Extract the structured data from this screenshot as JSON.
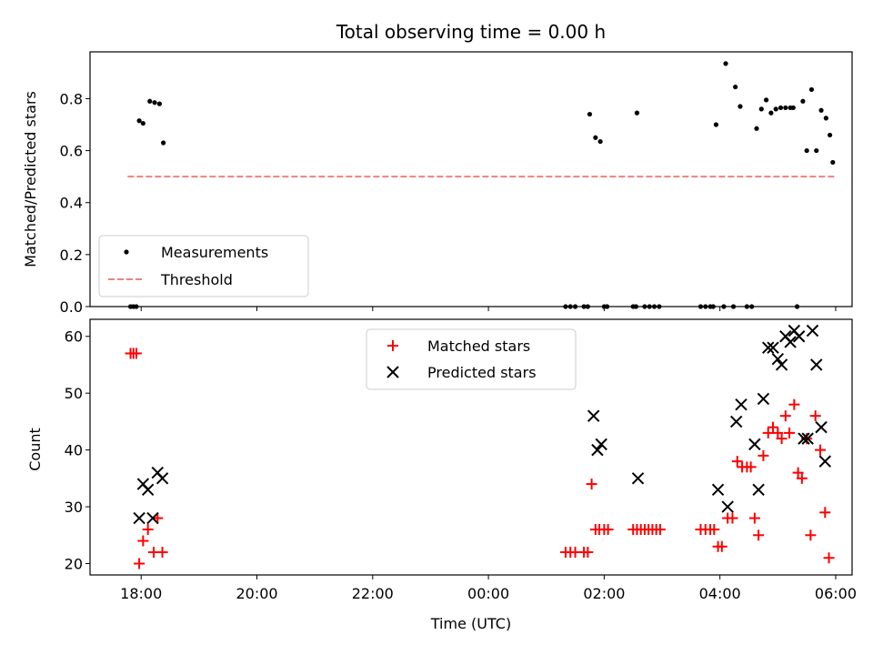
{
  "chart_data": [
    {
      "type": "scatter",
      "title": "Total observing time = 0.00 h",
      "xlabel": "",
      "ylabel": "Matched/Predicted stars",
      "xlim": [
        "17:07",
        "06:17"
      ],
      "ylim": [
        0,
        0.98
      ],
      "yticks": [
        "0.0",
        "0.2",
        "0.4",
        "0.6",
        "0.8"
      ],
      "xticks": [
        "18:00",
        "20:00",
        "22:00",
        "00:00",
        "02:00",
        "04:00",
        "06:00"
      ],
      "legend_position": "lower-left",
      "series": [
        {
          "name": "Measurements",
          "marker": "dot",
          "color": "#000000",
          "points": [
            [
              "17:49",
              0.0
            ],
            [
              "17:52",
              0.0
            ],
            [
              "17:55",
              0.0
            ],
            [
              "17:58",
              0.715
            ],
            [
              "18:02",
              0.705
            ],
            [
              "18:09",
              0.79
            ],
            [
              "18:14",
              0.785
            ],
            [
              "18:19",
              0.78
            ],
            [
              "18:23",
              0.63
            ],
            [
              "01:20",
              0.0
            ],
            [
              "01:25",
              0.0
            ],
            [
              "01:30",
              0.0
            ],
            [
              "01:39",
              0.0
            ],
            [
              "01:43",
              0.0
            ],
            [
              "01:45",
              0.74
            ],
            [
              "01:51",
              0.65
            ],
            [
              "01:56",
              0.635
            ],
            [
              "02:00",
              0.0
            ],
            [
              "02:03",
              0.0
            ],
            [
              "02:30",
              0.0
            ],
            [
              "02:33",
              0.0
            ],
            [
              "02:34",
              0.745
            ],
            [
              "02:42",
              0.0
            ],
            [
              "02:47",
              0.0
            ],
            [
              "02:52",
              0.0
            ],
            [
              "02:57",
              0.0
            ],
            [
              "03:40",
              0.0
            ],
            [
              "03:45",
              0.0
            ],
            [
              "03:50",
              0.0
            ],
            [
              "03:53",
              0.0
            ],
            [
              "03:56",
              0.7
            ],
            [
              "04:04",
              0.0
            ],
            [
              "04:06",
              0.935
            ],
            [
              "04:14",
              0.0
            ],
            [
              "04:16",
              0.845
            ],
            [
              "04:21",
              0.77
            ],
            [
              "04:28",
              0.0
            ],
            [
              "04:33",
              0.0
            ],
            [
              "04:38",
              0.685
            ],
            [
              "04:43",
              0.76
            ],
            [
              "04:48",
              0.795
            ],
            [
              "04:53",
              0.745
            ],
            [
              "04:58",
              0.76
            ],
            [
              "05:03",
              0.765
            ],
            [
              "05:08",
              0.765
            ],
            [
              "05:13",
              0.765
            ],
            [
              "05:16",
              0.765
            ],
            [
              "05:20",
              0.0
            ],
            [
              "05:26",
              0.79
            ],
            [
              "05:30",
              0.6
            ],
            [
              "05:35",
              0.835
            ],
            [
              "05:40",
              0.6
            ],
            [
              "05:45",
              0.755
            ],
            [
              "05:50",
              0.725
            ],
            [
              "05:54",
              0.66
            ],
            [
              "05:57",
              0.555
            ]
          ]
        },
        {
          "name": "Threshold",
          "line_style": "dashed",
          "color": "#f08080",
          "x": [
            "17:46",
            "06:00"
          ],
          "y": [
            0.5,
            0.5
          ]
        }
      ]
    },
    {
      "type": "scatter",
      "title": "",
      "xlabel": "Time (UTC)",
      "ylabel": "Count",
      "xlim": [
        "17:07",
        "06:17"
      ],
      "ylim": [
        18,
        63
      ],
      "yticks": [
        "20",
        "30",
        "40",
        "50",
        "60"
      ],
      "xticks": [
        "18:00",
        "20:00",
        "22:00",
        "00:00",
        "02:00",
        "04:00",
        "06:00"
      ],
      "legend_position": "upper-center",
      "series": [
        {
          "name": "Matched stars",
          "marker": "plus",
          "color": "#ff0000",
          "points": [
            [
              "17:49",
              57
            ],
            [
              "17:52",
              57
            ],
            [
              "17:55",
              57
            ],
            [
              "17:58",
              20
            ],
            [
              "18:02",
              24
            ],
            [
              "18:07",
              26
            ],
            [
              "18:13",
              22
            ],
            [
              "18:17",
              28
            ],
            [
              "18:22",
              22
            ],
            [
              "01:20",
              22
            ],
            [
              "01:25",
              22
            ],
            [
              "01:30",
              22
            ],
            [
              "01:39",
              22
            ],
            [
              "01:43",
              22
            ],
            [
              "01:47",
              34
            ],
            [
              "01:51",
              26
            ],
            [
              "01:55",
              26
            ],
            [
              "02:00",
              26
            ],
            [
              "02:04",
              26
            ],
            [
              "02:30",
              26
            ],
            [
              "02:34",
              26
            ],
            [
              "02:38",
              26
            ],
            [
              "02:42",
              26
            ],
            [
              "02:46",
              26
            ],
            [
              "02:50",
              26
            ],
            [
              "02:54",
              26
            ],
            [
              "02:58",
              26
            ],
            [
              "03:40",
              26
            ],
            [
              "03:45",
              26
            ],
            [
              "03:50",
              26
            ],
            [
              "03:54",
              26
            ],
            [
              "03:58",
              23
            ],
            [
              "04:02",
              23
            ],
            [
              "04:08",
              28
            ],
            [
              "04:13",
              28
            ],
            [
              "04:18",
              38
            ],
            [
              "04:23",
              37
            ],
            [
              "04:28",
              37
            ],
            [
              "04:32",
              37
            ],
            [
              "04:36",
              28
            ],
            [
              "04:40",
              25
            ],
            [
              "04:45",
              39
            ],
            [
              "04:50",
              43
            ],
            [
              "04:55",
              44
            ],
            [
              "05:00",
              43
            ],
            [
              "05:04",
              42
            ],
            [
              "05:08",
              46
            ],
            [
              "05:12",
              43
            ],
            [
              "05:17",
              48
            ],
            [
              "05:21",
              36
            ],
            [
              "05:25",
              35
            ],
            [
              "05:30",
              42
            ],
            [
              "05:34",
              25
            ],
            [
              "05:39",
              46
            ],
            [
              "05:44",
              40
            ],
            [
              "05:49",
              29
            ],
            [
              "05:53",
              21
            ]
          ]
        },
        {
          "name": "Predicted stars",
          "marker": "x",
          "color": "#000000",
          "points": [
            [
              "17:58",
              28
            ],
            [
              "18:02",
              34
            ],
            [
              "18:07",
              33
            ],
            [
              "18:12",
              28
            ],
            [
              "18:17",
              36
            ],
            [
              "18:22",
              35
            ],
            [
              "01:49",
              46
            ],
            [
              "01:53",
              40
            ],
            [
              "01:57",
              41
            ],
            [
              "02:35",
              35
            ],
            [
              "03:58",
              33
            ],
            [
              "04:08",
              30
            ],
            [
              "04:17",
              45
            ],
            [
              "04:22",
              48
            ],
            [
              "04:36",
              41
            ],
            [
              "04:40",
              33
            ],
            [
              "04:45",
              49
            ],
            [
              "04:50",
              58
            ],
            [
              "04:55",
              58
            ],
            [
              "05:00",
              56
            ],
            [
              "05:04",
              55
            ],
            [
              "05:08",
              60
            ],
            [
              "05:13",
              59
            ],
            [
              "05:17",
              61
            ],
            [
              "05:22",
              60
            ],
            [
              "05:27",
              42
            ],
            [
              "05:31",
              42
            ],
            [
              "05:36",
              61
            ],
            [
              "05:40",
              55
            ],
            [
              "05:45",
              44
            ],
            [
              "05:49",
              38
            ]
          ]
        }
      ]
    }
  ]
}
